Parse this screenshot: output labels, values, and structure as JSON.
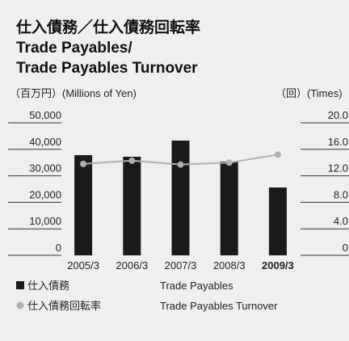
{
  "chart_data": {
    "type": "bar",
    "title_lines": [
      "仕入債務／仕入債務回転率",
      "Trade Payables/",
      "Trade Payables Turnover"
    ],
    "y_label": "（百万円）(Millions of Yen)",
    "y2_label": "（回）(Times)",
    "categories": [
      "2005/3",
      "2006/3",
      "2007/3",
      "2008/3",
      "2009/3"
    ],
    "highlight": "2009/3",
    "series": [
      {
        "name": "仕入債務",
        "name_en": "Trade Payables",
        "type": "bar",
        "color": "#1a1a1a",
        "values": [
          37800,
          37200,
          43300,
          35400,
          25600
        ]
      },
      {
        "name": "仕入債務回転率",
        "name_en": "Trade Payables Turnover",
        "type": "line",
        "axis": "y2",
        "color": "#b0b0b0",
        "values": [
          13.8,
          14.3,
          13.7,
          14.0,
          15.2
        ]
      }
    ],
    "ylim": [
      0,
      50000
    ],
    "yticks": [
      0,
      {
        "value": 10000,
        "label": "10,000"
      },
      {
        "value": 20000,
        "label": "20,000"
      },
      {
        "value": 30000,
        "label": "30,000"
      },
      {
        "value": 40000,
        "label": "40,000"
      },
      {
        "value": 50000,
        "label": "50,000"
      }
    ],
    "y2lim": [
      0,
      20
    ],
    "y2ticks": [
      0,
      {
        "value": 4,
        "label": "4.0"
      },
      {
        "value": 8,
        "label": "8.0"
      },
      {
        "value": 12,
        "label": "12.0"
      },
      {
        "value": 16,
        "label": "16.0"
      },
      {
        "value": 20,
        "label": "20.0"
      }
    ]
  }
}
